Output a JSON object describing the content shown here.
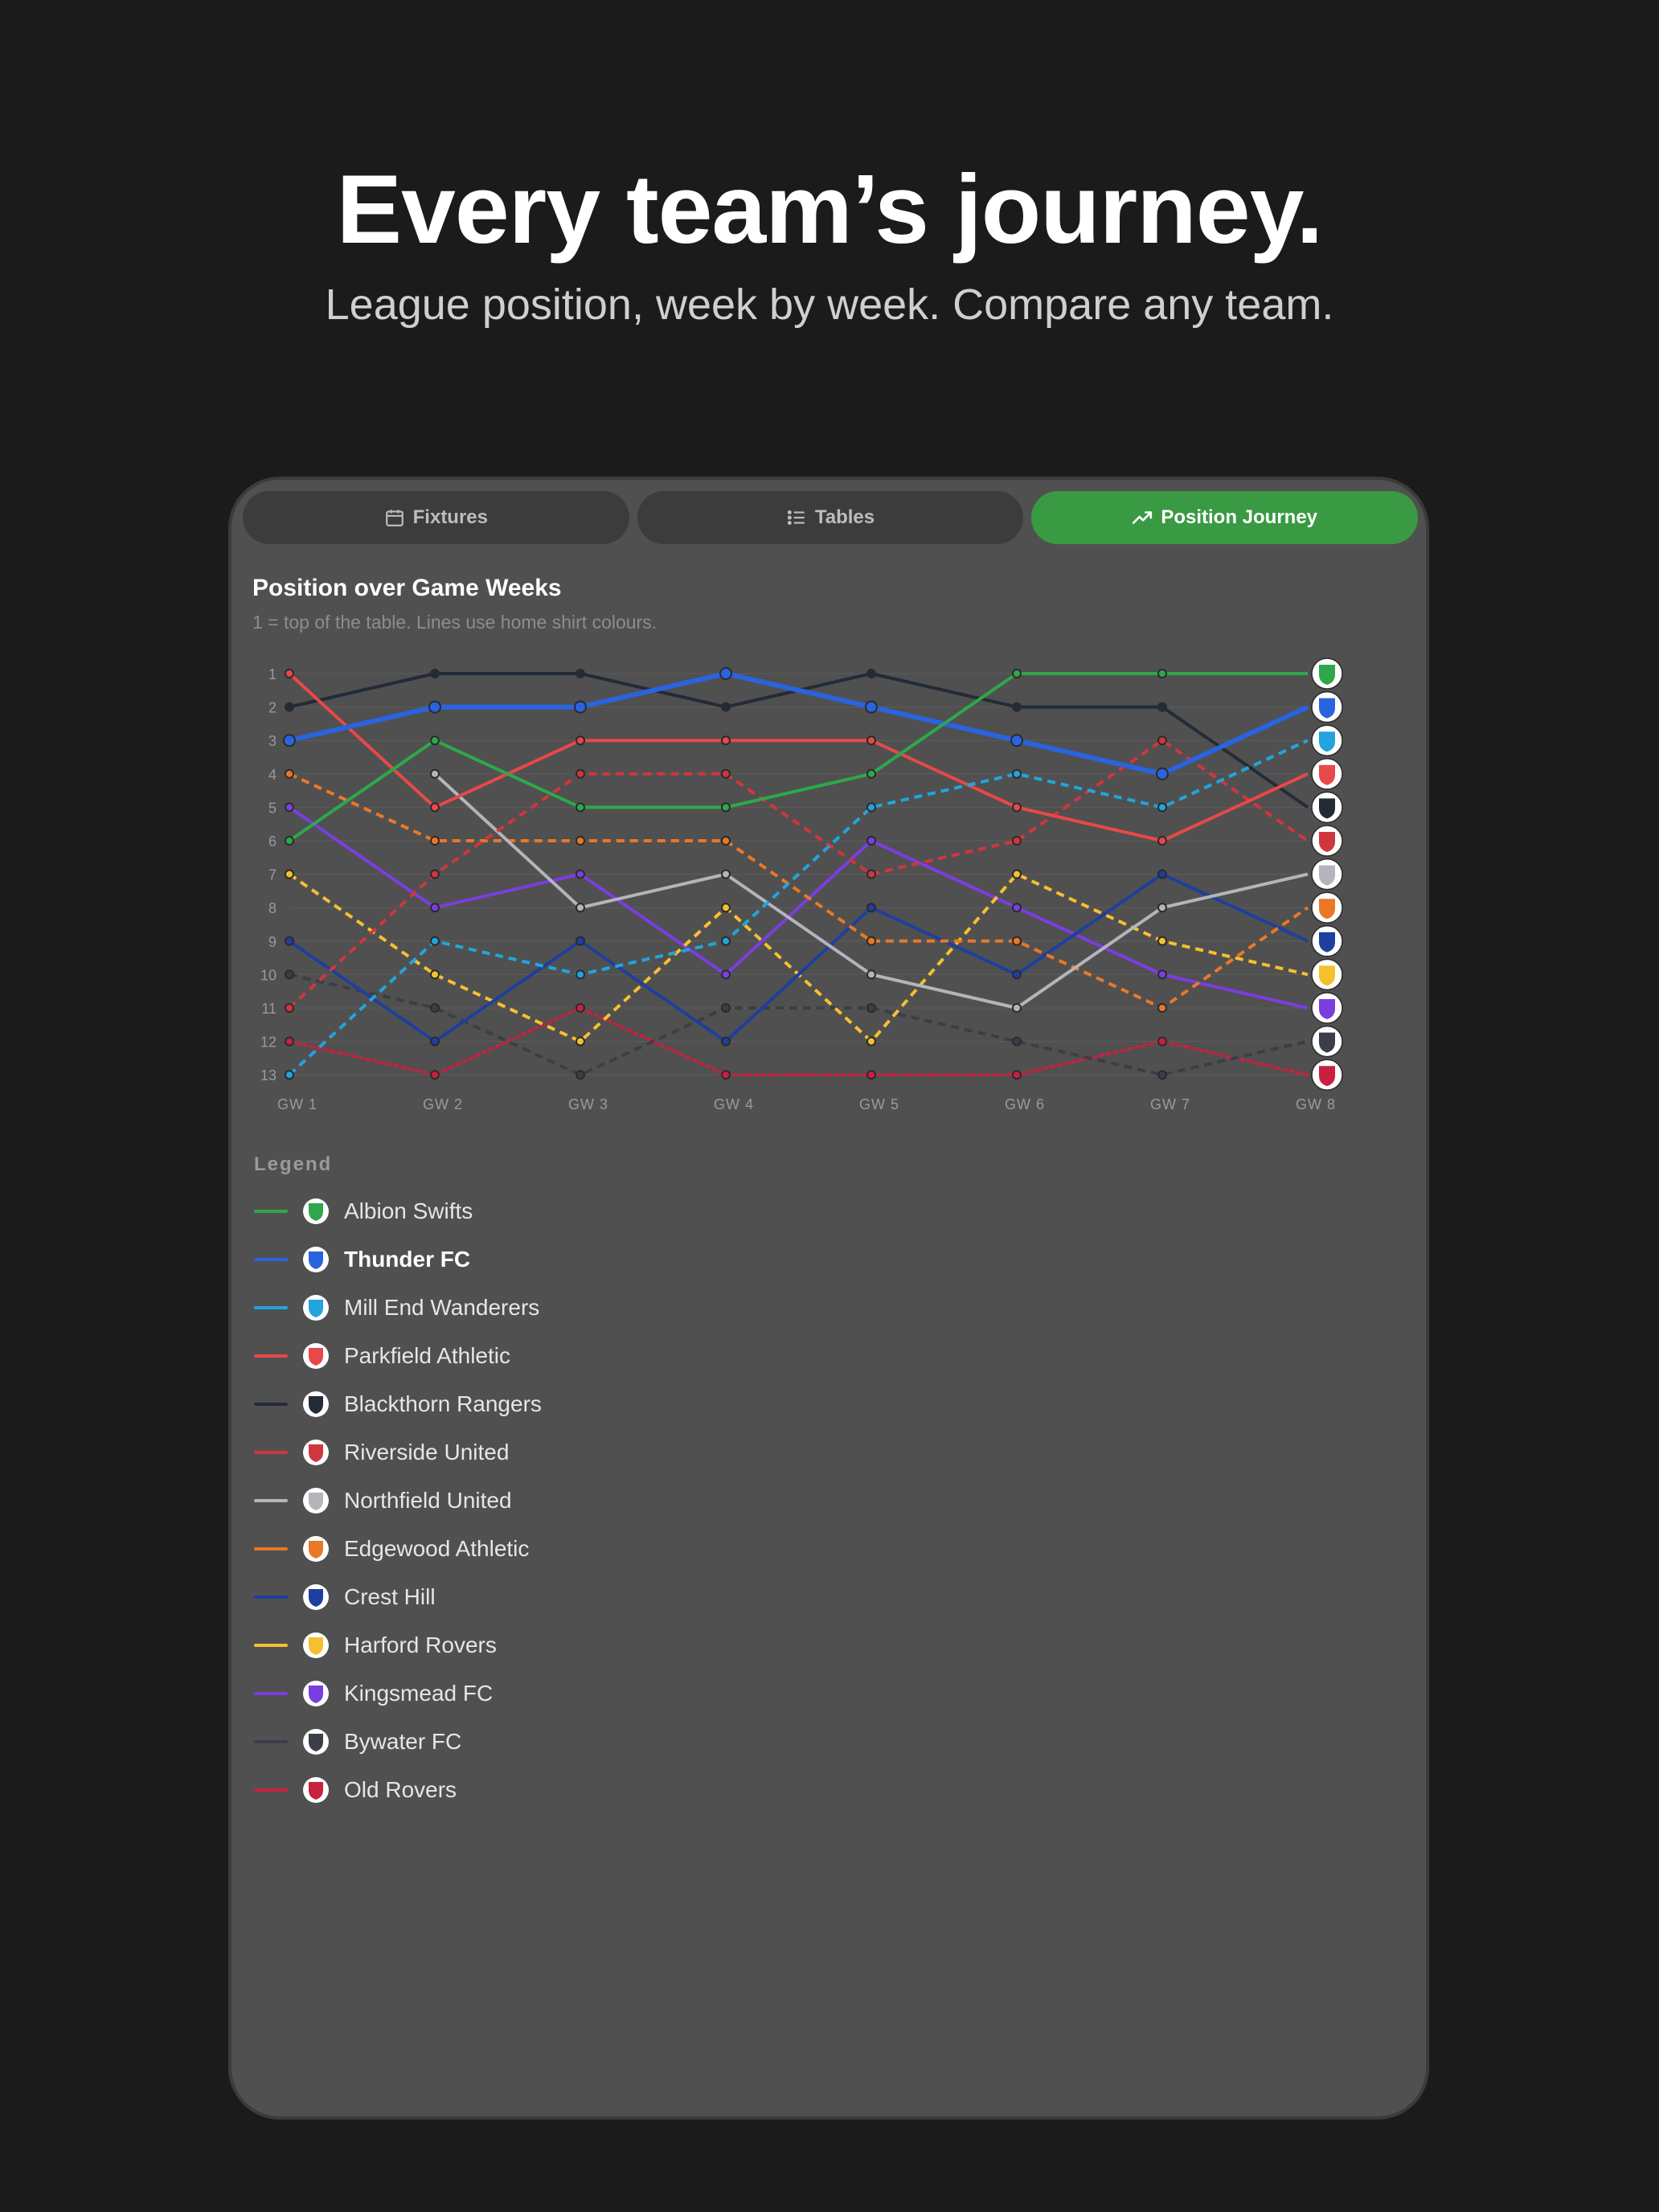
{
  "hero": {
    "title": "Every team’s journey.",
    "subtitle": "League position, week by week. Compare any team."
  },
  "tabs": [
    {
      "label": "Fixtures",
      "icon": "calendar-icon",
      "active": false
    },
    {
      "label": "Tables",
      "icon": "list-icon",
      "active": false
    },
    {
      "label": "Position Journey",
      "icon": "trending-up-icon",
      "active": true
    }
  ],
  "card": {
    "title": "Position over Game Weeks",
    "subtitle": "1 = top of the table. Lines use home shirt colours."
  },
  "legend_title": "Legend",
  "chart_data": {
    "type": "line",
    "x": [
      "GW 1",
      "GW 2",
      "GW 3",
      "GW 4",
      "GW 5",
      "GW 6",
      "GW 7",
      "GW 8"
    ],
    "y_ticks": [
      1,
      2,
      3,
      4,
      5,
      6,
      7,
      8,
      9,
      10,
      11,
      12,
      13
    ],
    "ylim": [
      1,
      13
    ],
    "y_inverted": true,
    "grid": true,
    "series": [
      {
        "name": "Albion Swifts",
        "color": "#2ea84a",
        "dash": "solid",
        "values": [
          6,
          3,
          5,
          5,
          4,
          1,
          1,
          1
        ]
      },
      {
        "name": "Thunder FC",
        "color": "#2a63e0",
        "dash": "solid",
        "bold": true,
        "values": [
          3,
          2,
          2,
          1,
          2,
          3,
          4,
          2
        ]
      },
      {
        "name": "Mill End Wanderers",
        "color": "#22a4dc",
        "dash": "dashed",
        "values": [
          13,
          9,
          10,
          9,
          5,
          4,
          5,
          3
        ]
      },
      {
        "name": "Parkfield Athletic",
        "color": "#e84848",
        "dash": "solid",
        "values": [
          1,
          5,
          3,
          3,
          3,
          5,
          6,
          4
        ]
      },
      {
        "name": "Blackthorn Rangers",
        "color": "#232b36",
        "dash": "solid",
        "values": [
          2,
          1,
          1,
          2,
          1,
          2,
          2,
          5
        ]
      },
      {
        "name": "Riverside United",
        "color": "#d0363e",
        "dash": "dashed",
        "values": [
          11,
          7,
          4,
          4,
          7,
          6,
          3,
          6
        ]
      },
      {
        "name": "Northfield United",
        "color": "#b4b4bc",
        "dash": "solid",
        "values": [
          null,
          4,
          8,
          7,
          10,
          11,
          8,
          7
        ]
      },
      {
        "name": "Edgewood Athletic",
        "color": "#e87828",
        "dash": "dashed",
        "values": [
          4,
          6,
          6,
          6,
          9,
          9,
          11,
          8
        ]
      },
      {
        "name": "Crest Hill",
        "color": "#1e3f9e",
        "dash": "solid",
        "values": [
          9,
          12,
          9,
          12,
          8,
          10,
          7,
          9
        ]
      },
      {
        "name": "Harford Rovers",
        "color": "#f5c030",
        "dash": "dashed",
        "values": [
          7,
          10,
          12,
          8,
          12,
          7,
          9,
          10
        ]
      },
      {
        "name": "Kingsmead FC",
        "color": "#7a3ee0",
        "dash": "solid",
        "values": [
          5,
          8,
          7,
          10,
          6,
          8,
          10,
          11
        ]
      },
      {
        "name": "Bywater FC",
        "color": "#3a3e48",
        "dash": "dashed",
        "values": [
          10,
          11,
          13,
          11,
          11,
          12,
          13,
          12
        ]
      },
      {
        "name": "Old Rovers",
        "color": "#c8203e",
        "dash": "dotted",
        "values": [
          12,
          13,
          11,
          13,
          13,
          13,
          12,
          13
        ]
      }
    ]
  }
}
